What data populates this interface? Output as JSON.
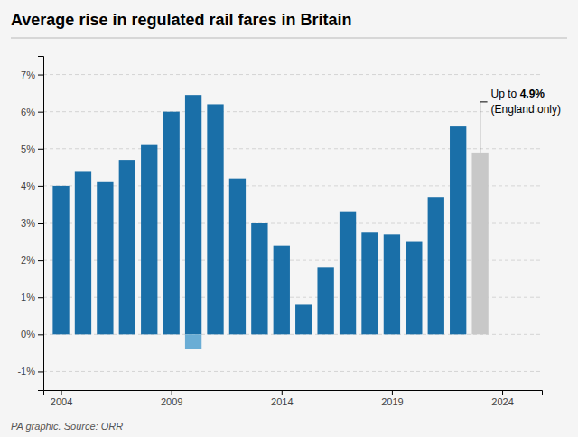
{
  "chart_data": {
    "type": "bar",
    "title": "Average rise in regulated rail fares in Britain",
    "source": "PA graphic. Source: ORR",
    "x": [
      2004,
      2005,
      2006,
      2007,
      2008,
      2009,
      2010,
      2011,
      2012,
      2013,
      2014,
      2015,
      2016,
      2017,
      2018,
      2019,
      2020,
      2021,
      2022,
      2023,
      2010
    ],
    "values": [
      4.0,
      4.4,
      4.1,
      4.7,
      5.1,
      6.0,
      6.45,
      6.2,
      4.2,
      3.0,
      2.4,
      0.8,
      1.8,
      3.3,
      2.75,
      2.7,
      2.5,
      3.7,
      5.6,
      4.9,
      -0.4
    ],
    "colors": [
      "#1a6fa8",
      "#1a6fa8",
      "#1a6fa8",
      "#1a6fa8",
      "#1a6fa8",
      "#1a6fa8",
      "#1a6fa8",
      "#1a6fa8",
      "#1a6fa8",
      "#1a6fa8",
      "#1a6fa8",
      "#1a6fa8",
      "#1a6fa8",
      "#1a6fa8",
      "#1a6fa8",
      "#1a6fa8",
      "#1a6fa8",
      "#1a6fa8",
      "#1a6fa8",
      "#c8c8c8",
      "#6aadd5"
    ],
    "xlim": [
      2003.2,
      2025.8
    ],
    "xticks": [
      2004,
      2009,
      2014,
      2019,
      2024
    ],
    "ylim": [
      -1.5,
      7.5
    ],
    "yticks": [
      {
        "value": -1,
        "label": "-1%"
      },
      {
        "value": 0,
        "label": "0%"
      },
      {
        "value": 1,
        "label": "1%"
      },
      {
        "value": 2,
        "label": "2%"
      },
      {
        "value": 3,
        "label": "3%"
      },
      {
        "value": 4,
        "label": "4%"
      },
      {
        "value": 5,
        "label": "5%"
      },
      {
        "value": 6,
        "label": "6%"
      },
      {
        "value": 7,
        "label": "7%"
      }
    ],
    "grid": true,
    "annotations": [
      {
        "x": 2023,
        "y": 4.9,
        "text": "Up to ",
        "text_bold": "4.9%",
        "note": "(England only)"
      }
    ]
  }
}
